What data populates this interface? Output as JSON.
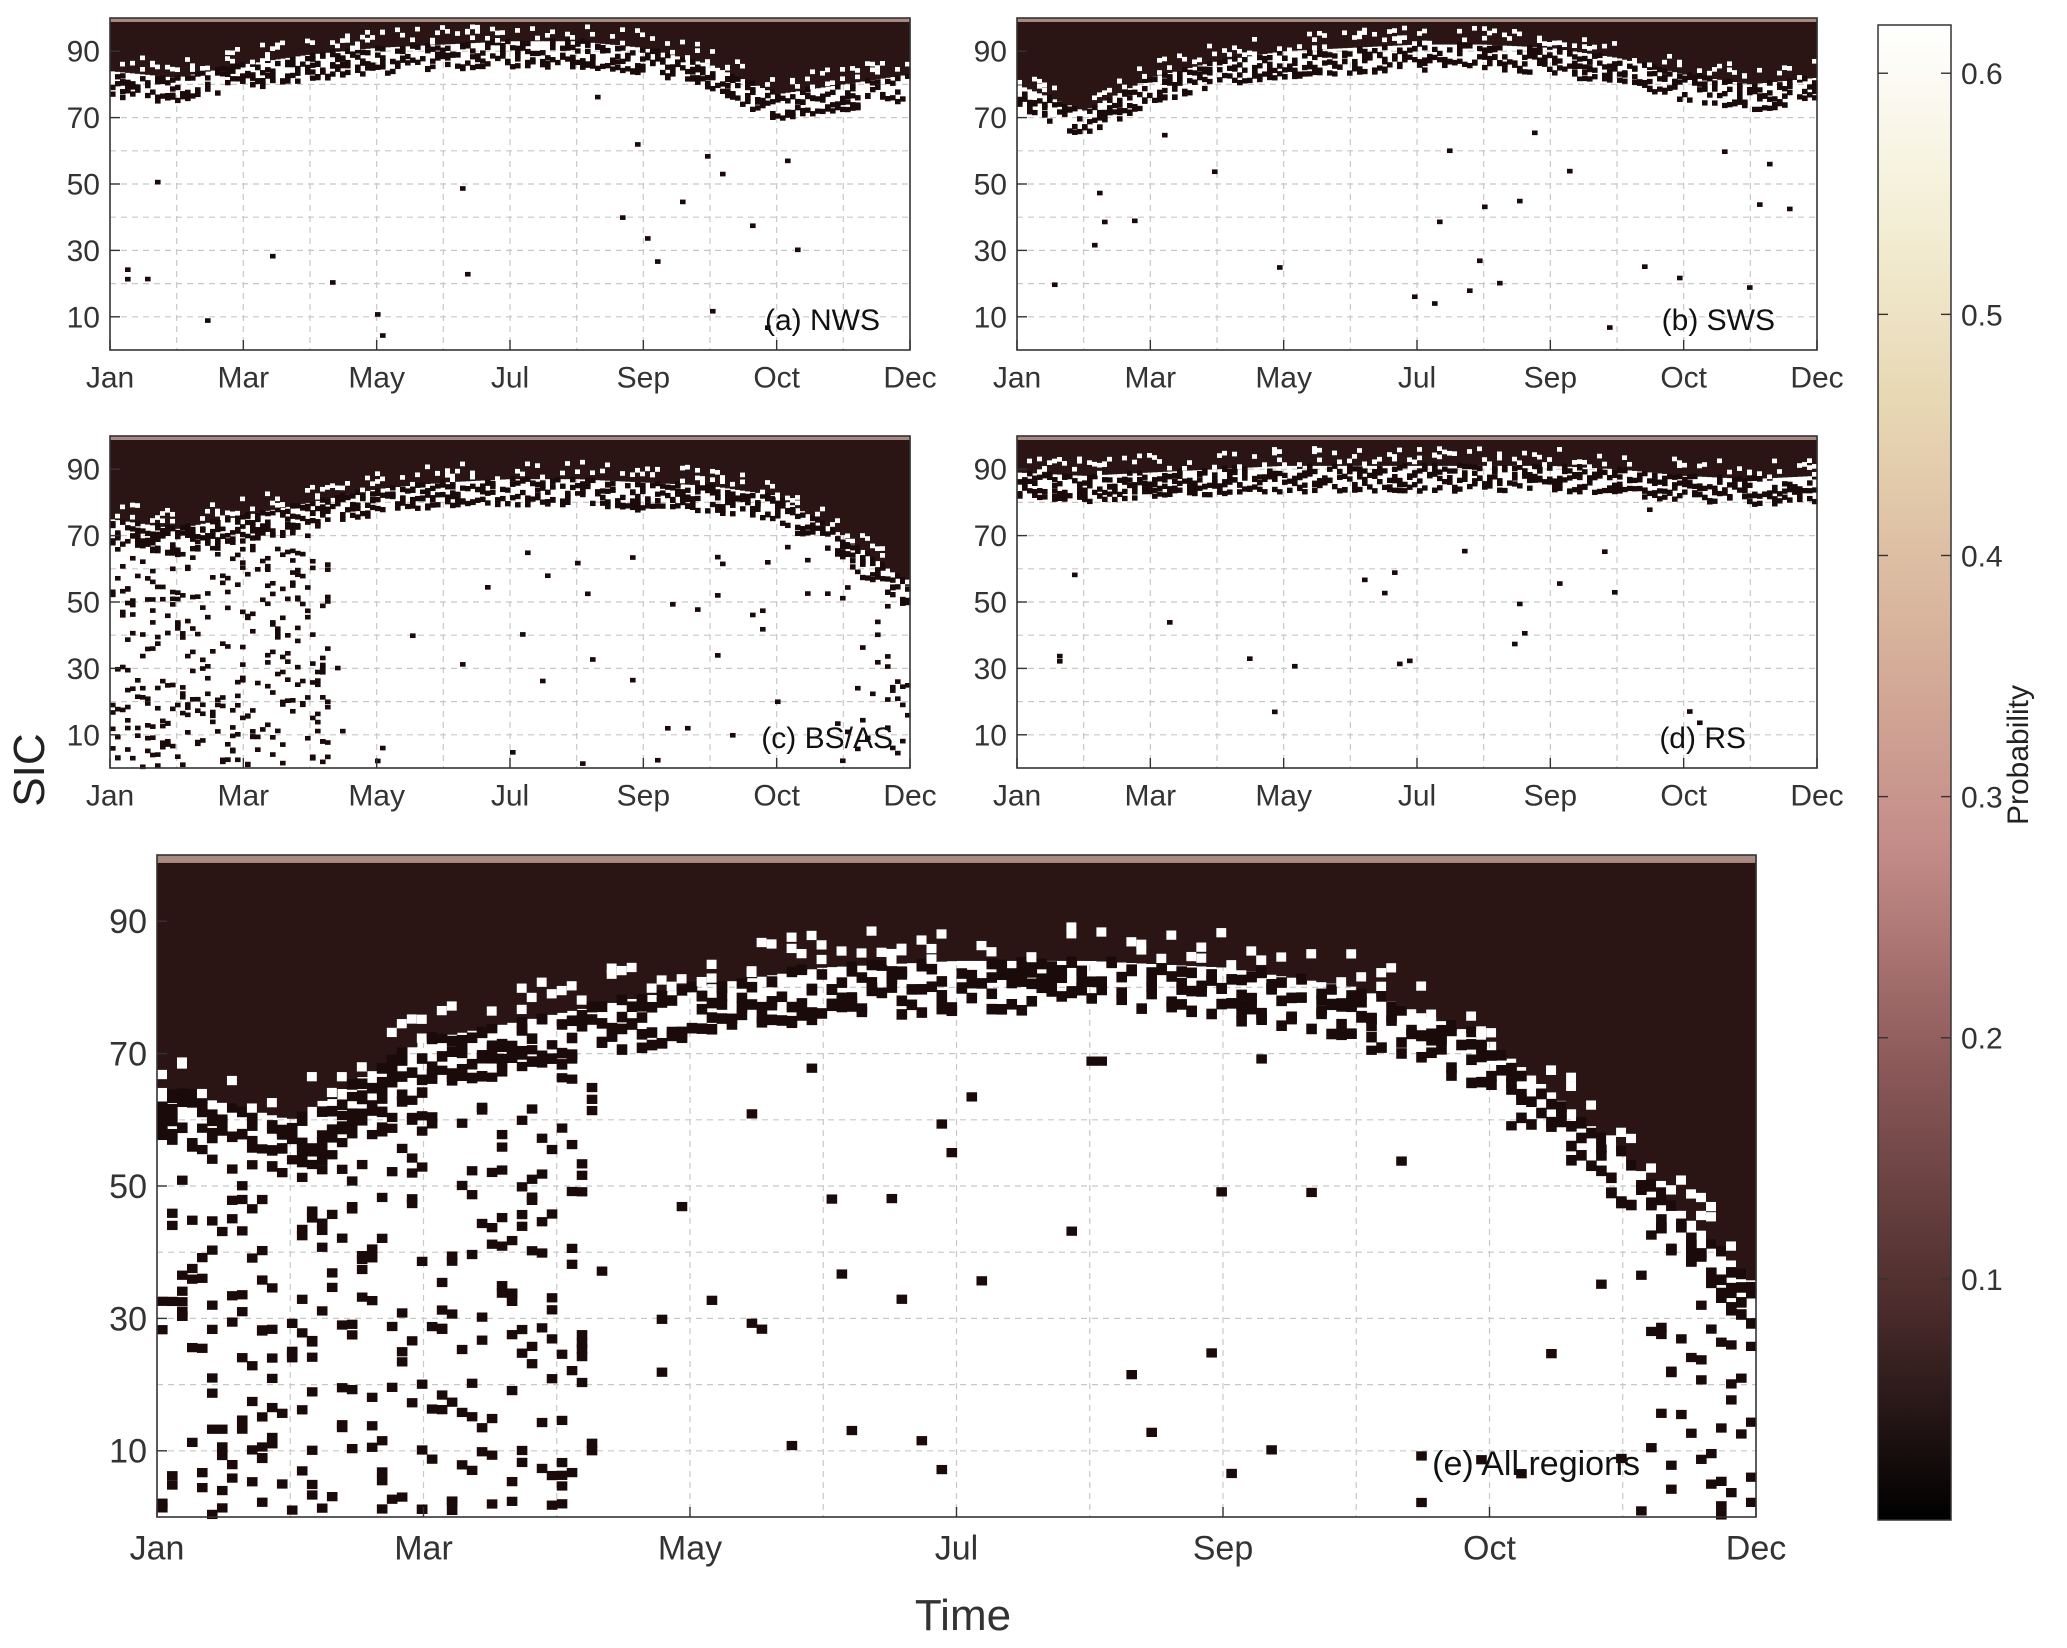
{
  "figure": {
    "ylabel": "SIC",
    "xlabel": "Time"
  },
  "colorbar": {
    "label": "Probability",
    "ticks": [
      "0.1",
      "0.2",
      "0.3",
      "0.4",
      "0.5",
      "0.6"
    ],
    "range": [
      0,
      0.62
    ],
    "colormap": [
      "#000000",
      "#4a2b2b",
      "#8a5858",
      "#c48c88",
      "#d8b49c",
      "#e8d8b4",
      "#f4f0d8",
      "#ffffff"
    ]
  },
  "chart_data": [
    {
      "type": "heatmap",
      "annotation": "(a) NWS",
      "x_tick_labels": [
        "Jan",
        "Mar",
        "May",
        "Jul",
        "Sep",
        "Oct",
        "Dec"
      ],
      "y_tick_labels": [
        "10",
        "30",
        "50",
        "70",
        "90"
      ],
      "ylim": [
        0,
        100
      ],
      "boundary_month_index": [
        0,
        1,
        2,
        3,
        4,
        5,
        6,
        7,
        8,
        9,
        10,
        11,
        12
      ],
      "boundary_sic": [
        84,
        82,
        86,
        89,
        91,
        92,
        93,
        93,
        91,
        86,
        77,
        80,
        83
      ],
      "low_sic_scatter": "sparse"
    },
    {
      "type": "heatmap",
      "annotation": "(b) SWS",
      "x_tick_labels": [
        "Jan",
        "Mar",
        "May",
        "Jul",
        "Sep",
        "Oct",
        "Dec"
      ],
      "y_tick_labels": [
        "10",
        "30",
        "50",
        "70",
        "90"
      ],
      "ylim": [
        0,
        100
      ],
      "boundary_month_index": [
        0,
        1,
        2,
        3,
        4,
        5,
        6,
        7,
        8,
        9,
        10,
        11,
        12
      ],
      "boundary_sic": [
        80,
        72,
        82,
        87,
        90,
        91,
        92,
        92,
        91,
        88,
        83,
        80,
        82
      ],
      "low_sic_scatter": "sparse"
    },
    {
      "type": "heatmap",
      "annotation": "(c) BS/AS",
      "x_tick_labels": [
        "Jan",
        "Mar",
        "May",
        "Jul",
        "Sep",
        "Oct",
        "Dec"
      ],
      "y_tick_labels": [
        "10",
        "30",
        "50",
        "70",
        "90"
      ],
      "ylim": [
        0,
        100
      ],
      "boundary_month_index": [
        0,
        1,
        2,
        3,
        4,
        5,
        6,
        7,
        8,
        9,
        10,
        11,
        12
      ],
      "boundary_sic": [
        75,
        72,
        76,
        80,
        84,
        86,
        87,
        87,
        86,
        85,
        82,
        70,
        55
      ],
      "low_sic_scatter": "dense-early"
    },
    {
      "type": "heatmap",
      "annotation": "(d) RS",
      "x_tick_labels": [
        "Jan",
        "Mar",
        "May",
        "Jul",
        "Sep",
        "Oct",
        "Dec"
      ],
      "y_tick_labels": [
        "10",
        "30",
        "50",
        "70",
        "90"
      ],
      "ylim": [
        0,
        100
      ],
      "boundary_month_index": [
        0,
        1,
        2,
        3,
        4,
        5,
        6,
        7,
        8,
        9,
        10,
        11,
        12
      ],
      "boundary_sic": [
        89,
        88,
        89,
        90,
        91,
        91,
        91,
        91,
        91,
        90,
        88,
        87,
        88
      ],
      "low_sic_scatter": "sparse"
    },
    {
      "type": "heatmap",
      "annotation": "(e) All regions",
      "x_tick_labels": [
        "Jan",
        "Mar",
        "May",
        "Jul",
        "Sep",
        "Oct",
        "Dec"
      ],
      "y_tick_labels": [
        "10",
        "30",
        "50",
        "70",
        "90"
      ],
      "ylim": [
        0,
        100
      ],
      "boundary_month_index": [
        0,
        1,
        2,
        3,
        4,
        5,
        6,
        7,
        8,
        9,
        10,
        11,
        12
      ],
      "boundary_sic": [
        65,
        60,
        72,
        76,
        80,
        83,
        84,
        84,
        83,
        80,
        72,
        55,
        35
      ],
      "low_sic_scatter": "dense-early"
    }
  ]
}
